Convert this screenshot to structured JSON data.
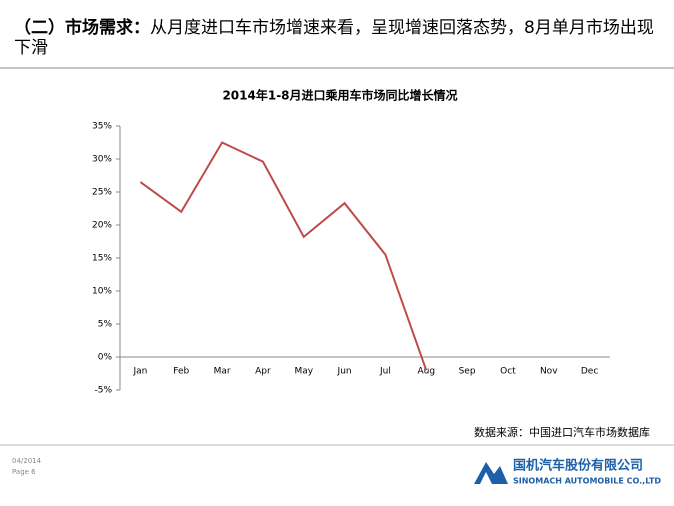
{
  "header": {
    "label": "（二）市场需求：",
    "text": "从月度进口车市场增速来看，呈现增速回落态势，8月单月市场出现下滑"
  },
  "chart_data": {
    "type": "line",
    "title": "2014年1-8月进口乘用车市场同比增长情况",
    "categories": [
      "Jan",
      "Feb",
      "Mar",
      "Apr",
      "May",
      "Jun",
      "Jul",
      "Aug",
      "Sep",
      "Oct",
      "Nov",
      "Dec"
    ],
    "series": [
      {
        "name": "同比增长",
        "color": "#be4b48",
        "values": [
          26.5,
          22,
          32.5,
          29.6,
          18.2,
          23.3,
          15.5,
          -2,
          null,
          null,
          null,
          null
        ]
      }
    ],
    "ylim": [
      -5,
      35
    ],
    "yticks": [
      {
        "value": -5,
        "label": "-5%"
      },
      {
        "value": 0,
        "label": "0%"
      },
      {
        "value": 5,
        "label": "5%"
      },
      {
        "value": 10,
        "label": "10%"
      },
      {
        "value": 15,
        "label": "15%"
      },
      {
        "value": 20,
        "label": "20%"
      },
      {
        "value": 25,
        "label": "25%"
      },
      {
        "value": 30,
        "label": "30%"
      },
      {
        "value": 35,
        "label": "35%"
      }
    ]
  },
  "source": "数据来源：中国进口汽车市场数据库",
  "footer": {
    "date": "04/2014",
    "page": "Page 6",
    "company_cn": "国机汽车股份有限公司",
    "company_en": "SINOMACH AUTOMOBILE CO.,LTD"
  }
}
